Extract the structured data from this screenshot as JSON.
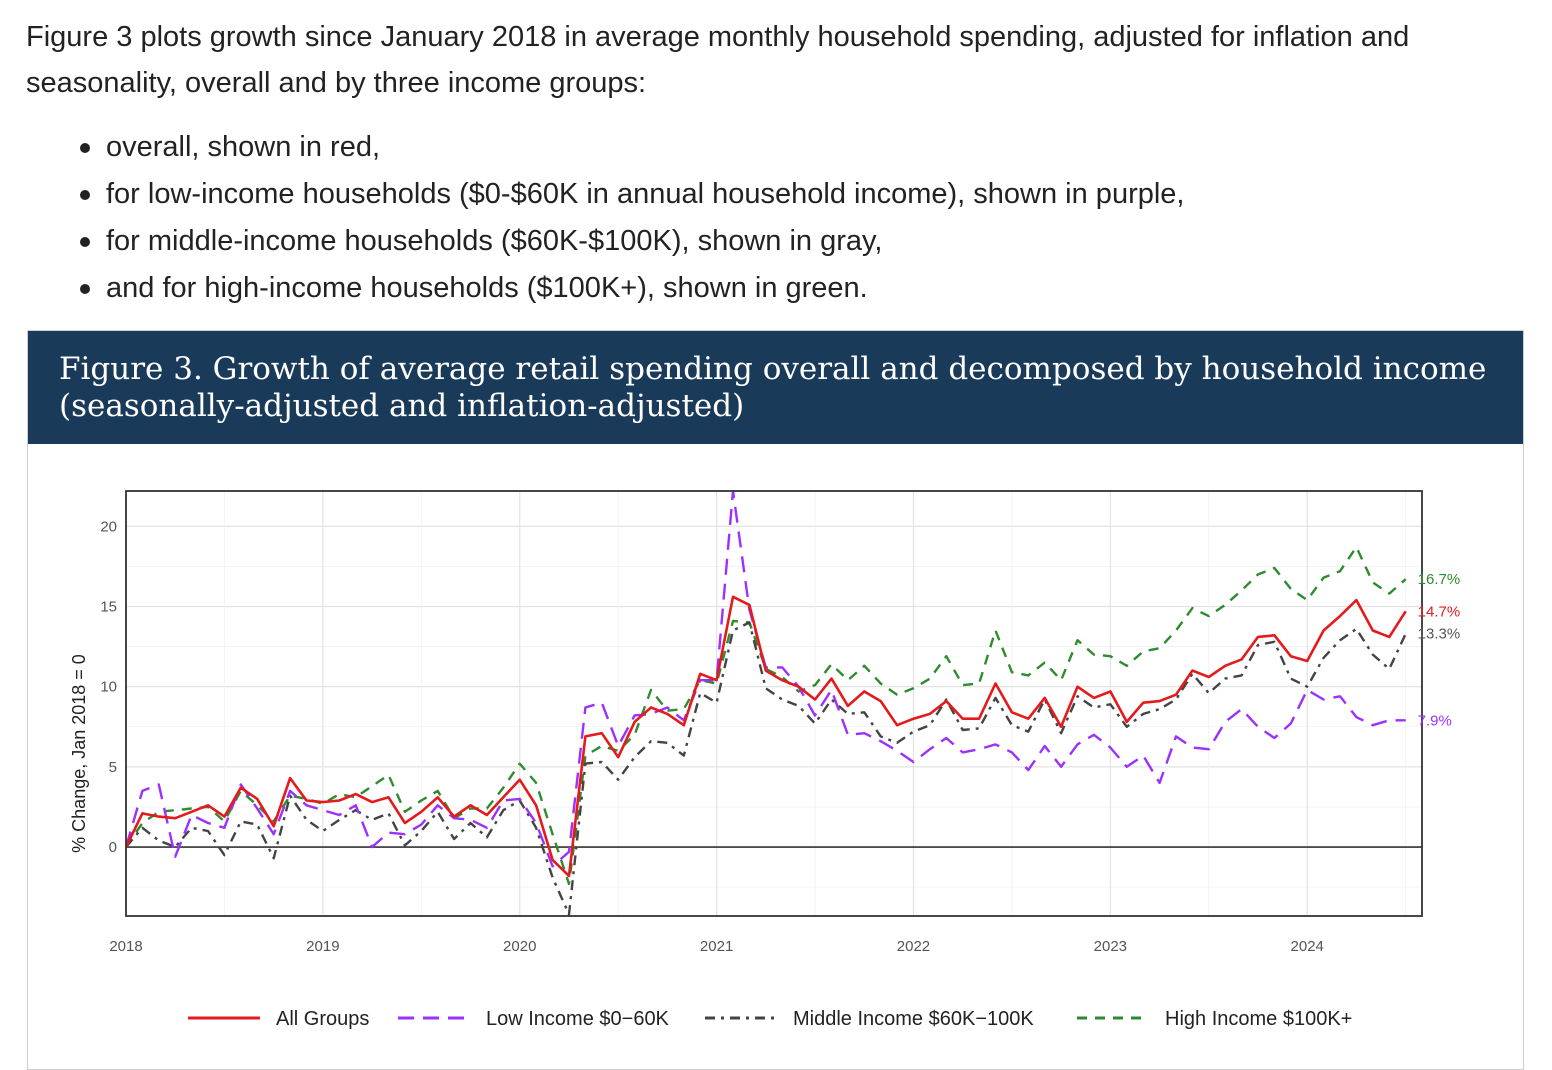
{
  "intro": {
    "text": "Figure 3 plots growth since January 2018 in average monthly household spending, adjusted for inflation and seasonality, overall and by three income groups:",
    "bullets": [
      "overall, shown in red,",
      "for low-income households ($0-$60K in annual household income), shown in purple,",
      "for middle-income households ($60K-$100K), shown in gray,",
      "and for high-income households ($100K+), shown in green."
    ]
  },
  "figure": {
    "title_line1": "Figure 3. Growth of average retail spending overall and decomposed by household income",
    "title_line2": "(seasonally-adjusted and inflation-adjusted)",
    "header_color": "#1a3a5a"
  },
  "chart_data": {
    "type": "line",
    "title": "Figure 3. Growth of average retail spending overall and decomposed by household income (seasonally-adjusted and inflation-adjusted)",
    "xlabel": "",
    "ylabel": "% Change, Jan 2018 = 0",
    "xlim": [
      2018.0,
      2024.583
    ],
    "ylim": [
      -4.3,
      22.2
    ],
    "x_ticks": [
      2018,
      2019,
      2020,
      2021,
      2022,
      2023,
      2024
    ],
    "y_ticks": [
      0,
      5,
      10,
      15,
      20
    ],
    "grid": true,
    "legend_position": "bottom",
    "start": "2018-01",
    "frequency": "monthly",
    "series": [
      {
        "name": "All Groups",
        "color": "#e41a1c",
        "dash": "solid",
        "end_label": "14.7%",
        "values": [
          0.0,
          2.1,
          1.9,
          1.8,
          2.2,
          2.6,
          1.9,
          3.7,
          3.0,
          1.3,
          4.3,
          2.9,
          2.8,
          2.9,
          3.3,
          2.8,
          3.1,
          1.5,
          2.2,
          3.1,
          1.9,
          2.6,
          2.0,
          3.1,
          4.2,
          2.6,
          -0.8,
          -1.8,
          6.9,
          7.1,
          5.6,
          7.8,
          8.7,
          8.3,
          7.6,
          10.8,
          10.4,
          15.6,
          15.1,
          11.0,
          10.4,
          10.0,
          9.2,
          10.5,
          8.8,
          9.7,
          9.1,
          7.6,
          8.0,
          8.3,
          9.1,
          8.0,
          8.0,
          10.2,
          8.4,
          8.0,
          9.3,
          7.5,
          10.0,
          9.3,
          9.7,
          7.8,
          9.0,
          9.1,
          9.5,
          11.0,
          10.6,
          11.3,
          11.7,
          13.1,
          13.2,
          11.9,
          11.6,
          13.5,
          14.4,
          15.4,
          13.5,
          13.1,
          14.7
        ]
      },
      {
        "name": "Low Income $0−60K",
        "color": "#9b30ff",
        "dash": "longdash",
        "end_label": "7.9%",
        "values": [
          0.0,
          3.5,
          3.9,
          -0.6,
          2.0,
          1.5,
          1.2,
          3.9,
          2.4,
          0.8,
          3.5,
          2.6,
          2.3,
          2.0,
          2.6,
          0.0,
          0.9,
          0.8,
          1.4,
          2.6,
          1.8,
          1.7,
          1.2,
          2.9,
          3.0,
          1.5,
          -1.2,
          -0.3,
          8.7,
          9.0,
          6.3,
          8.2,
          8.3,
          8.7,
          7.9,
          10.4,
          10.4,
          22.2,
          14.8,
          11.2,
          11.2,
          10.0,
          8.2,
          9.8,
          7.0,
          7.1,
          6.6,
          6.0,
          5.3,
          6.1,
          6.8,
          5.9,
          6.1,
          6.4,
          5.9,
          4.8,
          6.3,
          5.0,
          6.4,
          7.0,
          6.2,
          5.0,
          5.7,
          4.0,
          6.9,
          6.2,
          6.1,
          7.8,
          8.6,
          7.5,
          6.8,
          7.7,
          9.8,
          9.2,
          9.4,
          8.1,
          7.6,
          7.9,
          7.9
        ]
      },
      {
        "name": "Middle Income $60K−100K",
        "color": "#444444",
        "dash": "dashdot",
        "end_label": "13.3%",
        "values": [
          0.0,
          1.2,
          0.4,
          0.0,
          1.2,
          1.0,
          -0.5,
          1.6,
          1.4,
          -0.7,
          3.2,
          1.7,
          1.0,
          1.7,
          2.3,
          1.7,
          2.1,
          0.1,
          1.0,
          2.2,
          0.5,
          1.5,
          0.6,
          2.3,
          2.9,
          1.2,
          -1.9,
          -4.2,
          5.2,
          5.3,
          4.2,
          5.6,
          6.6,
          6.5,
          5.7,
          9.6,
          9.0,
          13.5,
          14.0,
          9.9,
          9.2,
          8.8,
          7.7,
          9.2,
          8.3,
          8.4,
          6.9,
          6.5,
          7.2,
          7.6,
          9.2,
          7.3,
          7.4,
          9.3,
          7.6,
          7.2,
          9.2,
          7.1,
          9.4,
          8.7,
          8.9,
          7.5,
          8.3,
          8.6,
          9.2,
          10.8,
          9.6,
          10.5,
          10.7,
          12.6,
          12.8,
          10.5,
          10.0,
          11.8,
          12.9,
          13.6,
          12.0,
          11.1,
          13.3
        ]
      },
      {
        "name": "High Income $100K+",
        "color": "#2e8b2e",
        "dash": "dashed",
        "end_label": "16.7%",
        "values": [
          0.0,
          1.5,
          2.2,
          2.3,
          2.4,
          2.5,
          1.6,
          3.5,
          2.6,
          1.6,
          3.2,
          3.0,
          2.7,
          3.3,
          3.1,
          3.8,
          4.5,
          2.2,
          2.9,
          3.5,
          1.8,
          2.4,
          2.4,
          3.7,
          5.2,
          4.0,
          0.8,
          -2.3,
          5.7,
          6.3,
          6.0,
          7.0,
          9.8,
          8.5,
          8.6,
          10.4,
          10.2,
          14.1,
          14.0,
          11.1,
          10.6,
          9.7,
          10.1,
          11.4,
          10.4,
          11.3,
          10.2,
          9.5,
          9.9,
          10.5,
          11.9,
          10.1,
          10.2,
          13.5,
          10.9,
          10.7,
          11.5,
          10.4,
          12.9,
          12.0,
          11.9,
          11.3,
          12.2,
          12.4,
          13.5,
          14.9,
          14.4,
          15.1,
          16.0,
          17.0,
          17.4,
          16.1,
          15.4,
          16.8,
          17.2,
          18.7,
          16.5,
          15.8,
          16.7
        ]
      }
    ]
  }
}
